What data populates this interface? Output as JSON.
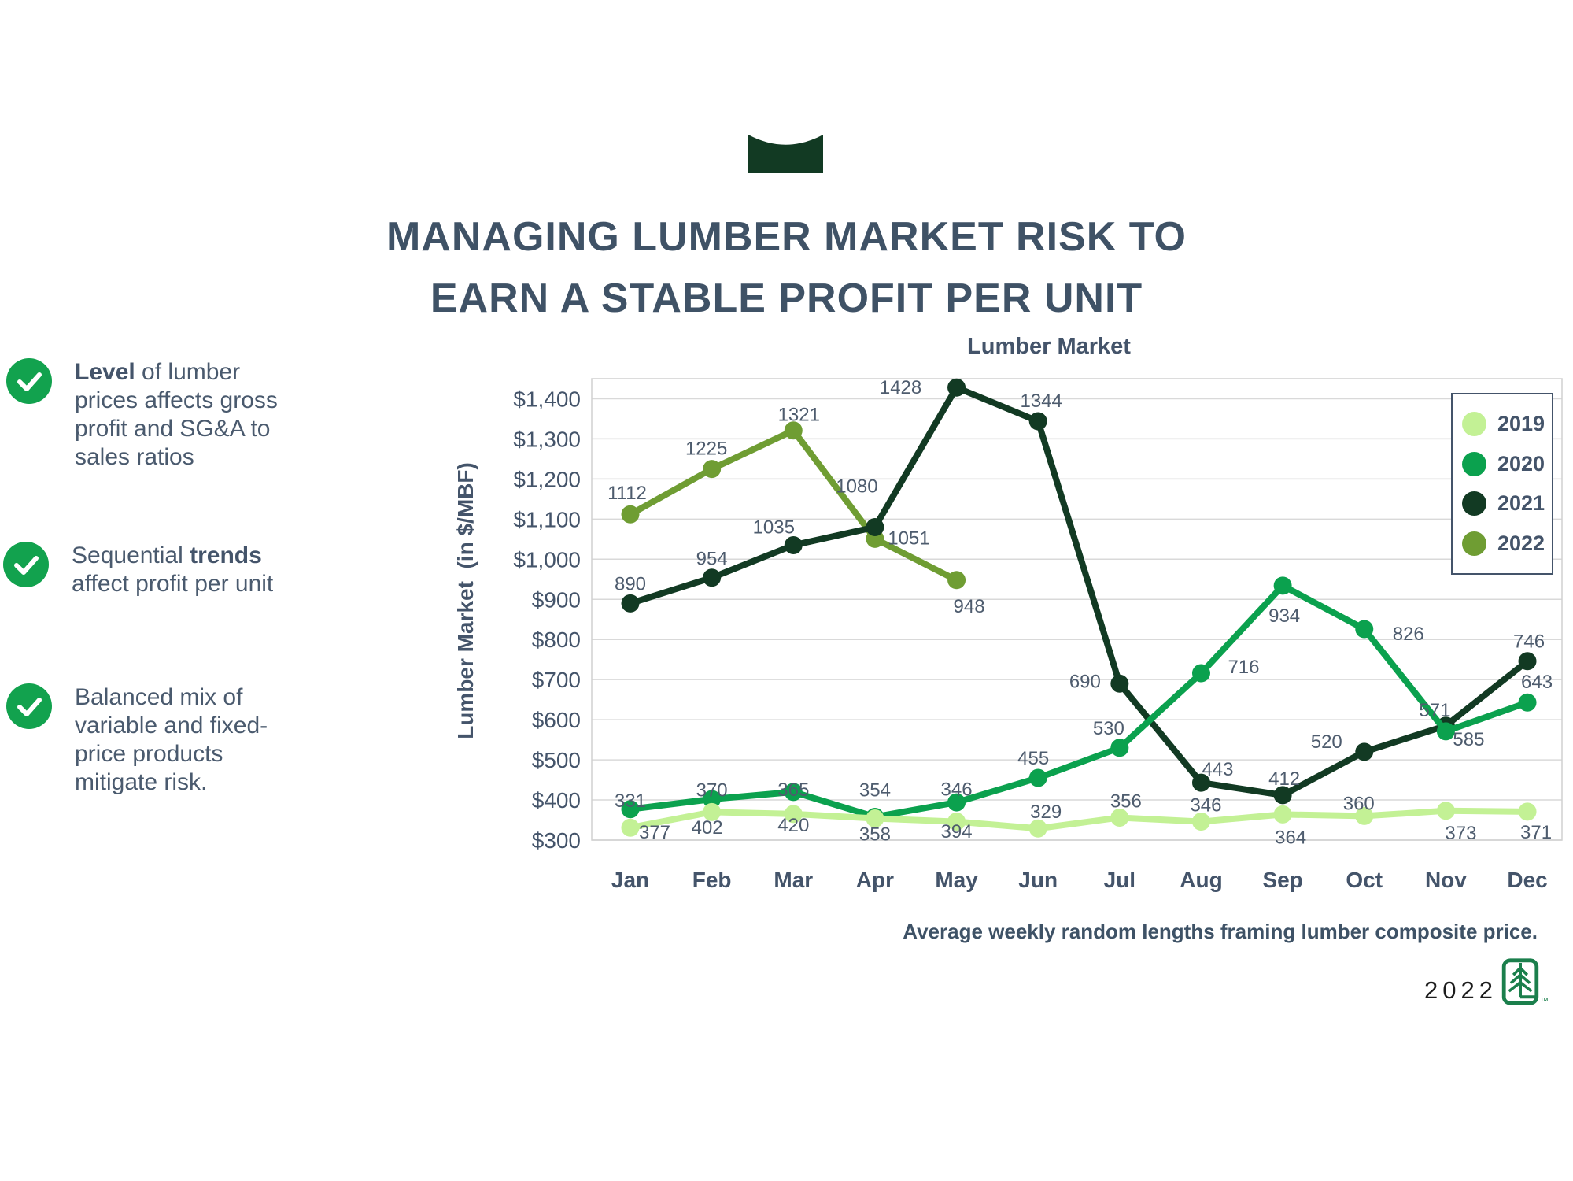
{
  "slide": {
    "title_line1": "MANAGING LUMBER MARKET RISK TO",
    "title_line2": "EARN A STABLE PROFIT PER UNIT",
    "bullets": [
      {
        "segments": [
          {
            "text": "Level",
            "bold": true
          },
          {
            "text": " of lumber prices affects gross profit and SG&A to sales ratios",
            "bold": false
          }
        ]
      },
      {
        "segments": [
          {
            "text": "Sequential ",
            "bold": false
          },
          {
            "text": "trends",
            "bold": true
          },
          {
            "text": " affect profit per unit",
            "bold": false
          }
        ]
      },
      {
        "segments": [
          {
            "text": "Balanced mix of variable and fixed-price products mitigate risk.",
            "bold": false
          }
        ]
      }
    ],
    "check_icon_color": "#12A24E",
    "logo_color": "#123A23",
    "tree_logo_color": "#1B7F4C",
    "footer_year": "2022",
    "trademark_symbol": "™"
  },
  "chart_data": {
    "type": "line",
    "title": "Lumber Market",
    "ylabel": "Lumber Market  (in $/MBF)",
    "footnote": "Average weekly random lengths framing lumber composite price.",
    "categories": [
      "Jan",
      "Feb",
      "Mar",
      "Apr",
      "May",
      "Jun",
      "Jul",
      "Aug",
      "Sep",
      "Oct",
      "Nov",
      "Dec"
    ],
    "ylim": [
      300,
      1450
    ],
    "grid": true,
    "legend_position": "top-right",
    "y_ticks": [
      {
        "value": 300,
        "label": "$300"
      },
      {
        "value": 400,
        "label": "$400"
      },
      {
        "value": 500,
        "label": "$500"
      },
      {
        "value": 600,
        "label": "$600"
      },
      {
        "value": 700,
        "label": "$700"
      },
      {
        "value": 800,
        "label": "$800"
      },
      {
        "value": 900,
        "label": "$900"
      },
      {
        "value": 1000,
        "label": "$1,000"
      },
      {
        "value": 1100,
        "label": "$1,100"
      },
      {
        "value": 1200,
        "label": "$1,200"
      },
      {
        "value": 1300,
        "label": "$1,300"
      },
      {
        "value": 1400,
        "label": "$1,400"
      }
    ],
    "series": [
      {
        "name": "2019",
        "color": "#C3F195",
        "values": [
          331,
          370,
          365,
          354,
          346,
          329,
          356,
          346,
          364,
          360,
          373,
          371
        ]
      },
      {
        "name": "2020",
        "color": "#0BA14E",
        "values": [
          377,
          402,
          420,
          358,
          394,
          455,
          530,
          716,
          934,
          826,
          571,
          643
        ]
      },
      {
        "name": "2021",
        "color": "#123A23",
        "values": [
          890,
          954,
          1035,
          1080,
          1428,
          1344,
          690,
          443,
          412,
          520,
          585,
          746
        ]
      },
      {
        "name": "2022",
        "color": "#6F9D33",
        "values": [
          1112,
          1225,
          1321,
          1051,
          948,
          null,
          null,
          null,
          null,
          null,
          null,
          null
        ]
      }
    ]
  }
}
